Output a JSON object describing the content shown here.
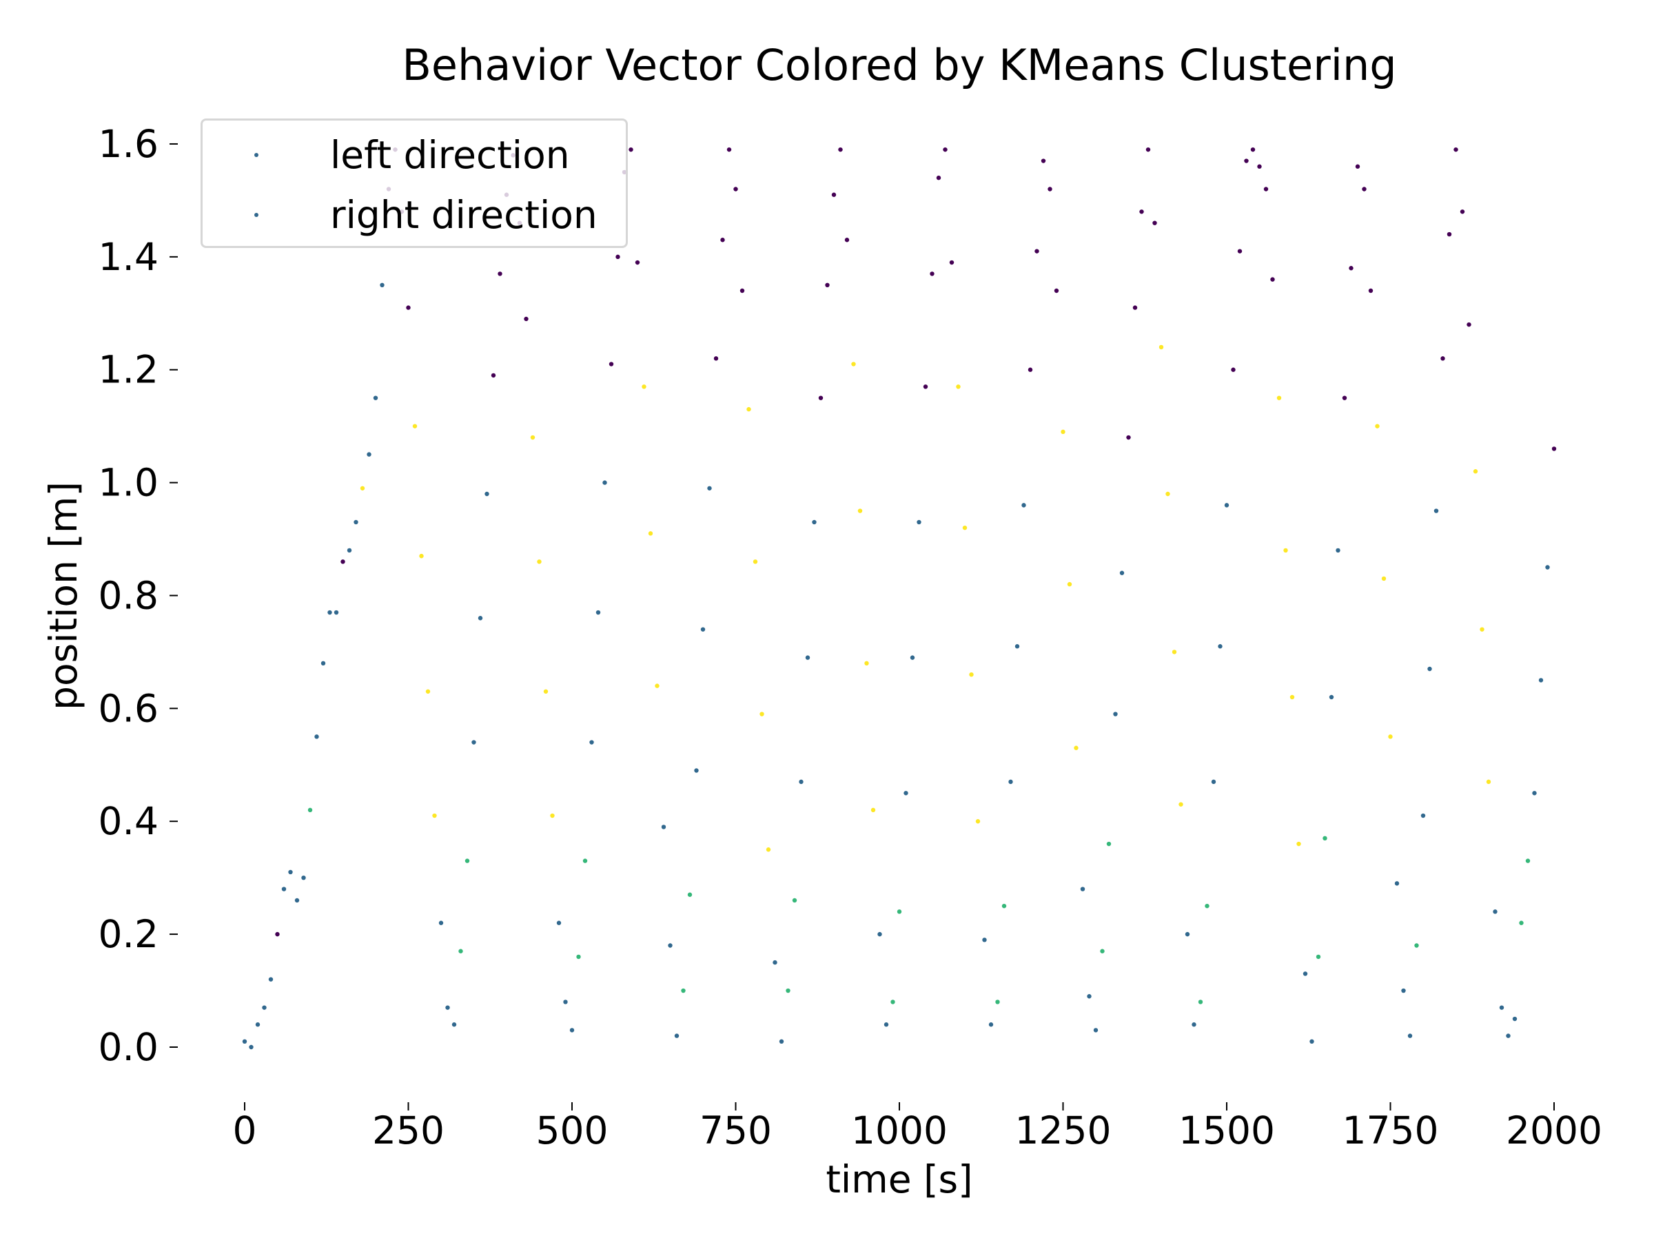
{
  "chart_data": {
    "type": "scatter",
    "title": "Behavior Vector Colored by KMeans Clustering",
    "xlabel": "time [s]",
    "ylabel": "position [m]",
    "xlim": [
      -80,
      2080
    ],
    "ylim": [
      -0.08,
      1.68
    ],
    "xticks": [
      "0",
      "250",
      "500",
      "750",
      "1000",
      "1250",
      "1500",
      "1750",
      "2000"
    ],
    "yticks": [
      "0.0",
      "0.2",
      "0.4",
      "0.6",
      "0.8",
      "1.0",
      "1.2",
      "1.4",
      "1.6"
    ],
    "grid": false,
    "legend": {
      "placement": "upper-left",
      "entries": [
        {
          "label": "left direction",
          "color": "#31688e"
        },
        {
          "label": "right direction",
          "color": "#31688e"
        }
      ]
    },
    "cluster_colors": [
      "#440154",
      "#31688e",
      "#35b779",
      "#fde725"
    ],
    "points": [
      [
        0,
        0.01,
        1
      ],
      [
        10,
        0.0,
        1
      ],
      [
        20,
        0.04,
        1
      ],
      [
        30,
        0.07,
        1
      ],
      [
        40,
        0.12,
        1
      ],
      [
        50,
        0.2,
        0
      ],
      [
        60,
        0.28,
        1
      ],
      [
        70,
        0.31,
        1
      ],
      [
        80,
        0.26,
        1
      ],
      [
        90,
        0.3,
        1
      ],
      [
        100,
        0.42,
        2
      ],
      [
        110,
        0.55,
        1
      ],
      [
        120,
        0.68,
        1
      ],
      [
        130,
        0.77,
        1
      ],
      [
        140,
        0.77,
        1
      ],
      [
        150,
        0.86,
        0
      ],
      [
        160,
        0.88,
        1
      ],
      [
        170,
        0.93,
        1
      ],
      [
        180,
        0.99,
        3
      ],
      [
        190,
        1.05,
        1
      ],
      [
        200,
        1.15,
        1
      ],
      [
        210,
        1.35,
        1
      ],
      [
        220,
        1.52,
        0
      ],
      [
        230,
        1.59,
        0
      ],
      [
        240,
        1.48,
        0
      ],
      [
        250,
        1.31,
        0
      ],
      [
        260,
        1.1,
        3
      ],
      [
        270,
        0.87,
        3
      ],
      [
        280,
        0.63,
        3
      ],
      [
        290,
        0.41,
        3
      ],
      [
        300,
        0.22,
        1
      ],
      [
        310,
        0.07,
        1
      ],
      [
        320,
        0.04,
        1
      ],
      [
        330,
        0.17,
        2
      ],
      [
        340,
        0.33,
        2
      ],
      [
        350,
        0.54,
        1
      ],
      [
        360,
        0.76,
        1
      ],
      [
        370,
        0.98,
        1
      ],
      [
        380,
        1.19,
        0
      ],
      [
        390,
        1.37,
        0
      ],
      [
        400,
        1.51,
        0
      ],
      [
        410,
        1.58,
        0
      ],
      [
        420,
        1.46,
        0
      ],
      [
        430,
        1.29,
        0
      ],
      [
        440,
        1.08,
        3
      ],
      [
        450,
        0.86,
        3
      ],
      [
        460,
        0.63,
        3
      ],
      [
        470,
        0.41,
        3
      ],
      [
        480,
        0.22,
        1
      ],
      [
        490,
        0.08,
        1
      ],
      [
        500,
        0.03,
        1
      ],
      [
        510,
        0.16,
        2
      ],
      [
        520,
        0.33,
        2
      ],
      [
        530,
        0.54,
        1
      ],
      [
        540,
        0.77,
        1
      ],
      [
        550,
        1.0,
        1
      ],
      [
        560,
        1.21,
        0
      ],
      [
        570,
        1.4,
        0
      ],
      [
        580,
        1.55,
        0
      ],
      [
        590,
        1.59,
        0
      ],
      [
        600,
        1.39,
        0
      ],
      [
        610,
        1.17,
        3
      ],
      [
        620,
        0.91,
        3
      ],
      [
        630,
        0.64,
        3
      ],
      [
        640,
        0.39,
        1
      ],
      [
        650,
        0.18,
        1
      ],
      [
        660,
        0.02,
        1
      ],
      [
        670,
        0.1,
        2
      ],
      [
        680,
        0.27,
        2
      ],
      [
        690,
        0.49,
        1
      ],
      [
        700,
        0.74,
        1
      ],
      [
        710,
        0.99,
        1
      ],
      [
        720,
        1.22,
        0
      ],
      [
        730,
        1.43,
        0
      ],
      [
        740,
        1.59,
        0
      ],
      [
        750,
        1.52,
        0
      ],
      [
        760,
        1.34,
        0
      ],
      [
        770,
        1.13,
        3
      ],
      [
        780,
        0.86,
        3
      ],
      [
        790,
        0.59,
        3
      ],
      [
        800,
        0.35,
        3
      ],
      [
        810,
        0.15,
        1
      ],
      [
        820,
        0.01,
        1
      ],
      [
        830,
        0.1,
        2
      ],
      [
        840,
        0.26,
        2
      ],
      [
        850,
        0.47,
        1
      ],
      [
        860,
        0.69,
        1
      ],
      [
        870,
        0.93,
        1
      ],
      [
        880,
        1.15,
        0
      ],
      [
        890,
        1.35,
        0
      ],
      [
        900,
        1.51,
        0
      ],
      [
        910,
        1.59,
        0
      ],
      [
        920,
        1.43,
        0
      ],
      [
        930,
        1.21,
        3
      ],
      [
        940,
        0.95,
        3
      ],
      [
        950,
        0.68,
        3
      ],
      [
        960,
        0.42,
        3
      ],
      [
        970,
        0.2,
        1
      ],
      [
        980,
        0.04,
        1
      ],
      [
        990,
        0.08,
        2
      ],
      [
        1000,
        0.24,
        2
      ],
      [
        1010,
        0.45,
        1
      ],
      [
        1020,
        0.69,
        1
      ],
      [
        1030,
        0.93,
        1
      ],
      [
        1040,
        1.17,
        0
      ],
      [
        1050,
        1.37,
        0
      ],
      [
        1060,
        1.54,
        0
      ],
      [
        1070,
        1.59,
        0
      ],
      [
        1080,
        1.39,
        0
      ],
      [
        1090,
        1.17,
        3
      ],
      [
        1100,
        0.92,
        3
      ],
      [
        1110,
        0.66,
        3
      ],
      [
        1120,
        0.4,
        3
      ],
      [
        1130,
        0.19,
        1
      ],
      [
        1140,
        0.04,
        1
      ],
      [
        1150,
        0.08,
        2
      ],
      [
        1160,
        0.25,
        2
      ],
      [
        1170,
        0.47,
        1
      ],
      [
        1180,
        0.71,
        1
      ],
      [
        1190,
        0.96,
        1
      ],
      [
        1200,
        1.2,
        0
      ],
      [
        1210,
        1.41,
        0
      ],
      [
        1220,
        1.57,
        0
      ],
      [
        1230,
        1.52,
        0
      ],
      [
        1240,
        1.34,
        0
      ],
      [
        1250,
        1.09,
        3
      ],
      [
        1260,
        0.82,
        3
      ],
      [
        1270,
        0.53,
        3
      ],
      [
        1280,
        0.28,
        1
      ],
      [
        1290,
        0.09,
        1
      ],
      [
        1300,
        0.03,
        1
      ],
      [
        1310,
        0.17,
        2
      ],
      [
        1320,
        0.36,
        2
      ],
      [
        1330,
        0.59,
        1
      ],
      [
        1340,
        0.84,
        1
      ],
      [
        1350,
        1.08,
        0
      ],
      [
        1360,
        1.31,
        0
      ],
      [
        1370,
        1.48,
        0
      ],
      [
        1380,
        1.59,
        0
      ],
      [
        1390,
        1.46,
        0
      ],
      [
        1400,
        1.24,
        3
      ],
      [
        1410,
        0.98,
        3
      ],
      [
        1420,
        0.7,
        3
      ],
      [
        1430,
        0.43,
        3
      ],
      [
        1440,
        0.2,
        1
      ],
      [
        1450,
        0.04,
        1
      ],
      [
        1460,
        0.08,
        2
      ],
      [
        1470,
        0.25,
        2
      ],
      [
        1480,
        0.47,
        1
      ],
      [
        1490,
        0.71,
        1
      ],
      [
        1500,
        0.96,
        1
      ],
      [
        1510,
        1.2,
        0
      ],
      [
        1520,
        1.41,
        0
      ],
      [
        1530,
        1.57,
        0
      ],
      [
        1540,
        1.59,
        0
      ],
      [
        1550,
        1.56,
        0
      ],
      [
        1560,
        1.52,
        0
      ],
      [
        1570,
        1.36,
        0
      ],
      [
        1580,
        1.15,
        3
      ],
      [
        1590,
        0.88,
        3
      ],
      [
        1600,
        0.62,
        3
      ],
      [
        1610,
        0.36,
        3
      ],
      [
        1620,
        0.13,
        1
      ],
      [
        1630,
        0.01,
        1
      ],
      [
        1640,
        0.16,
        2
      ],
      [
        1650,
        0.37,
        2
      ],
      [
        1660,
        0.62,
        1
      ],
      [
        1670,
        0.88,
        1
      ],
      [
        1680,
        1.15,
        0
      ],
      [
        1690,
        1.38,
        0
      ],
      [
        1700,
        1.56,
        0
      ],
      [
        1710,
        1.52,
        0
      ],
      [
        1720,
        1.34,
        0
      ],
      [
        1730,
        1.1,
        3
      ],
      [
        1740,
        0.83,
        3
      ],
      [
        1750,
        0.55,
        3
      ],
      [
        1760,
        0.29,
        1
      ],
      [
        1770,
        0.1,
        1
      ],
      [
        1780,
        0.02,
        1
      ],
      [
        1790,
        0.18,
        2
      ],
      [
        1800,
        0.41,
        1
      ],
      [
        1810,
        0.67,
        1
      ],
      [
        1820,
        0.95,
        1
      ],
      [
        1830,
        1.22,
        0
      ],
      [
        1840,
        1.44,
        0
      ],
      [
        1850,
        1.59,
        0
      ],
      [
        1860,
        1.48,
        0
      ],
      [
        1870,
        1.28,
        0
      ],
      [
        1880,
        1.02,
        3
      ],
      [
        1890,
        0.74,
        3
      ],
      [
        1900,
        0.47,
        3
      ],
      [
        1910,
        0.24,
        1
      ],
      [
        1920,
        0.07,
        1
      ],
      [
        1930,
        0.02,
        1
      ],
      [
        1940,
        0.05,
        1
      ],
      [
        1950,
        0.22,
        2
      ],
      [
        1960,
        0.33,
        2
      ],
      [
        1970,
        0.45,
        1
      ],
      [
        1980,
        0.65,
        1
      ],
      [
        1990,
        0.85,
        1
      ],
      [
        2000,
        1.06,
        0
      ]
    ]
  }
}
